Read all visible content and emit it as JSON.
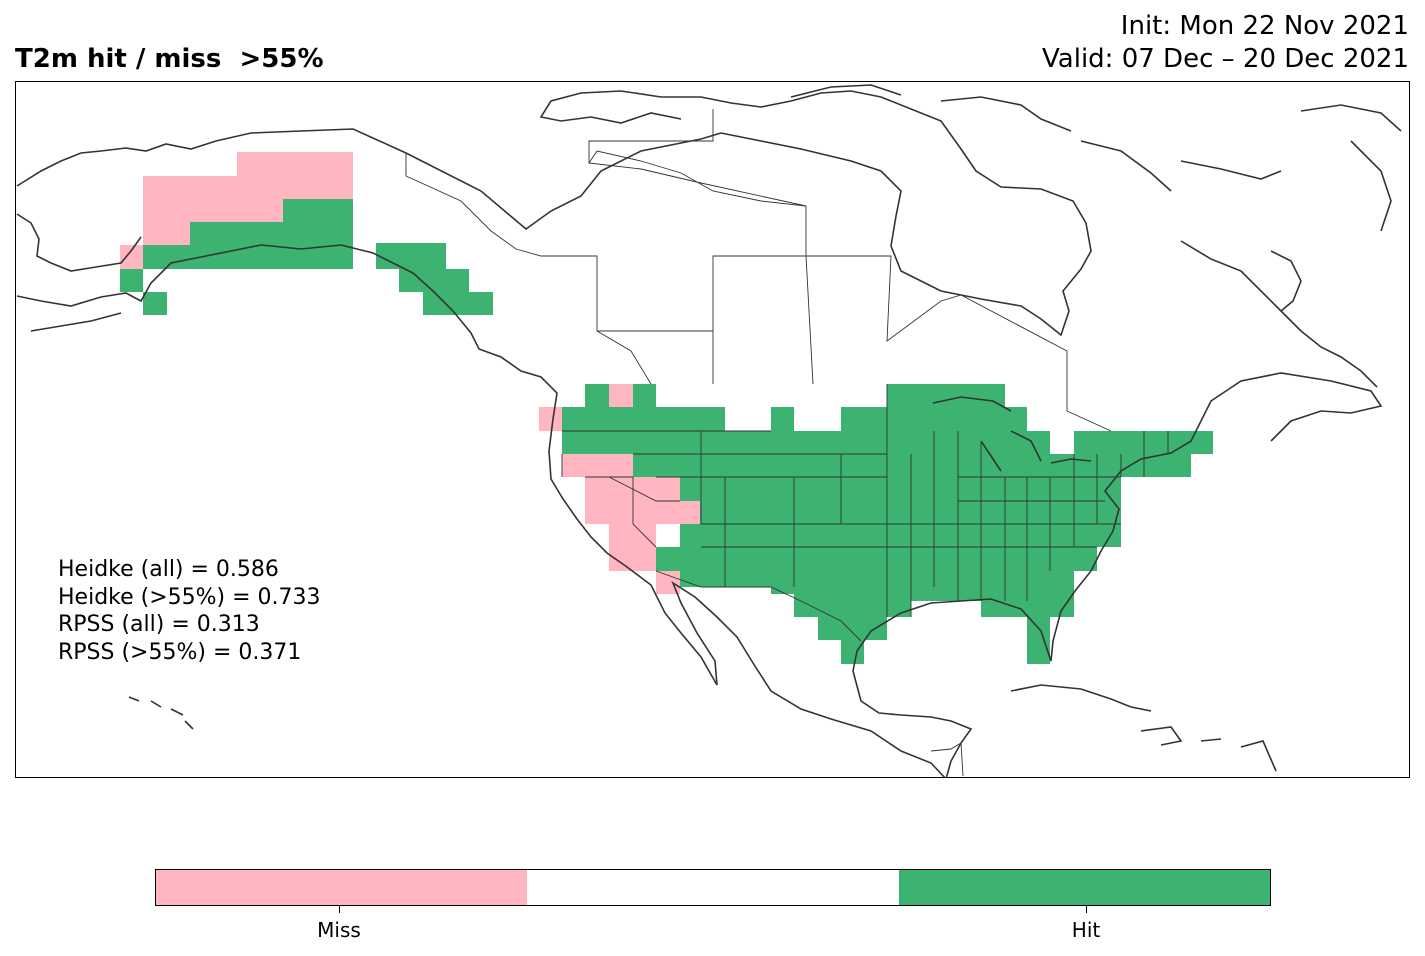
{
  "title": {
    "left": "T2m hit / miss  >55%",
    "init": "Init: Mon 22 Nov 2021",
    "valid": "Valid: 07 Dec – 20 Dec 2021"
  },
  "stats": [
    "Heidke (all) = 0.586",
    "Heidke (>55%) = 0.733",
    "RPSS (all) = 0.313",
    "RPSS (>55%) = 0.371"
  ],
  "colorbar": {
    "categories": [
      {
        "label": "Miss",
        "color": "#ffb6c1"
      },
      {
        "label": "",
        "color": "#ffffff"
      },
      {
        "label": "Hit",
        "color": "#3cb371"
      }
    ]
  },
  "map_colors": {
    "miss": "#ffb6c1",
    "hit": "#3cb371",
    "coast": "#333333",
    "border": "#333333"
  }
}
